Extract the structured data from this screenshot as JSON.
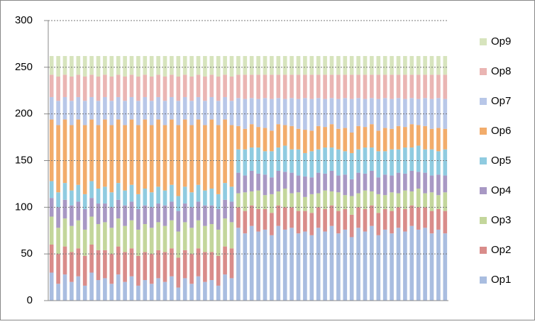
{
  "chart_data": {
    "type": "stacked-bar",
    "categories": [
      null,
      null,
      null,
      null,
      null,
      null,
      null,
      null,
      null,
      null,
      null,
      null,
      null,
      null,
      null,
      null,
      null,
      null,
      null,
      null,
      null,
      null,
      null,
      null,
      null,
      null,
      null,
      null,
      null,
      null,
      null,
      null,
      null,
      null,
      null,
      null,
      null,
      null,
      null,
      null,
      null,
      null,
      null,
      null,
      null,
      null,
      null,
      null,
      null,
      null,
      null,
      null,
      null,
      null,
      null,
      null,
      null,
      null,
      null,
      null
    ],
    "series": [
      {
        "name": "Op1",
        "color": "#a9bde0",
        "values": [
          30,
          18,
          28,
          20,
          26,
          16,
          30,
          22,
          24,
          18,
          28,
          20,
          26,
          16,
          22,
          18,
          24,
          20,
          26,
          14,
          24,
          18,
          26,
          20,
          22,
          16,
          28,
          24,
          78,
          72,
          80,
          74,
          76,
          70,
          80,
          76,
          78,
          72,
          74,
          70,
          78,
          74,
          80,
          72,
          76,
          68,
          78,
          74,
          80,
          70,
          76,
          72,
          78,
          74,
          80,
          76,
          78,
          72,
          76,
          72
        ]
      },
      {
        "name": "Op2",
        "color": "#d98c8a",
        "values": [
          30,
          32,
          30,
          32,
          30,
          32,
          30,
          32,
          30,
          32,
          30,
          32,
          30,
          32,
          30,
          32,
          30,
          32,
          30,
          32,
          30,
          32,
          30,
          32,
          30,
          32,
          30,
          32,
          22,
          24,
          22,
          24,
          22,
          24,
          22,
          24,
          22,
          24,
          22,
          24,
          22,
          24,
          22,
          24,
          22,
          24,
          22,
          24,
          22,
          24,
          22,
          24,
          22,
          24,
          22,
          24,
          22,
          24,
          22,
          24
        ]
      },
      {
        "name": "Op3",
        "color": "#c3d69b",
        "values": [
          30,
          28,
          30,
          28,
          30,
          28,
          30,
          28,
          30,
          28,
          30,
          28,
          30,
          28,
          30,
          28,
          30,
          28,
          30,
          28,
          30,
          28,
          30,
          28,
          30,
          28,
          30,
          28,
          15,
          20,
          15,
          20,
          15,
          20,
          15,
          20,
          15,
          20,
          15,
          20,
          15,
          20,
          15,
          20,
          15,
          20,
          15,
          20,
          15,
          20,
          15,
          20,
          15,
          20,
          15,
          20,
          15,
          20,
          15,
          20
        ]
      },
      {
        "name": "Op4",
        "color": "#a898c4",
        "values": [
          20,
          22,
          20,
          22,
          20,
          22,
          20,
          22,
          20,
          22,
          20,
          22,
          20,
          22,
          20,
          22,
          20,
          22,
          20,
          22,
          20,
          22,
          20,
          22,
          20,
          22,
          20,
          22,
          22,
          18,
          22,
          18,
          22,
          18,
          22,
          18,
          22,
          18,
          22,
          18,
          22,
          18,
          22,
          18,
          22,
          18,
          22,
          18,
          22,
          18,
          22,
          18,
          22,
          18,
          22,
          18,
          22,
          18,
          22,
          18
        ]
      },
      {
        "name": "Op5",
        "color": "#8fcbe0",
        "values": [
          18,
          16,
          18,
          16,
          18,
          16,
          18,
          16,
          18,
          16,
          18,
          16,
          18,
          16,
          18,
          16,
          18,
          16,
          18,
          16,
          18,
          16,
          18,
          16,
          18,
          16,
          18,
          16,
          25,
          28,
          25,
          28,
          25,
          28,
          25,
          28,
          25,
          28,
          25,
          28,
          25,
          28,
          25,
          28,
          25,
          28,
          25,
          28,
          25,
          28,
          25,
          28,
          25,
          28,
          25,
          28,
          25,
          28,
          25,
          28
        ]
      },
      {
        "name": "Op6",
        "color": "#f2ac6b",
        "values": [
          66,
          72,
          68,
          70,
          70,
          74,
          66,
          68,
          72,
          72,
          68,
          70,
          70,
          74,
          74,
          72,
          72,
          70,
          70,
          76,
          72,
          72,
          70,
          70,
          74,
          74,
          68,
          66,
          25,
          22,
          25,
          22,
          25,
          22,
          25,
          22,
          25,
          22,
          25,
          22,
          25,
          22,
          25,
          22,
          25,
          22,
          25,
          22,
          25,
          22,
          25,
          22,
          25,
          22,
          25,
          22,
          25,
          22,
          25,
          22
        ]
      },
      {
        "name": "Op7",
        "color": "#b8c7e8",
        "values": [
          24,
          26,
          24,
          26,
          24,
          26,
          24,
          26,
          24,
          26,
          24,
          26,
          24,
          26,
          24,
          26,
          24,
          26,
          24,
          26,
          24,
          26,
          24,
          26,
          24,
          26,
          24,
          26,
          30,
          32,
          28,
          30,
          32,
          34,
          28,
          28,
          30,
          32,
          34,
          34,
          30,
          30,
          28,
          32,
          32,
          36,
          30,
          30,
          28,
          34,
          32,
          32,
          30,
          30,
          28,
          28,
          30,
          32,
          32,
          32
        ]
      },
      {
        "name": "Op8",
        "color": "#eab5b3",
        "values": [
          24,
          26,
          24,
          26,
          24,
          26,
          24,
          26,
          24,
          26,
          24,
          26,
          24,
          26,
          24,
          26,
          24,
          26,
          24,
          26,
          24,
          26,
          24,
          26,
          24,
          26,
          24,
          26,
          25,
          26,
          25,
          26,
          25,
          26,
          25,
          26,
          25,
          26,
          25,
          26,
          25,
          26,
          25,
          26,
          25,
          26,
          25,
          26,
          25,
          26,
          25,
          26,
          25,
          26,
          25,
          26,
          25,
          26,
          25,
          26
        ]
      },
      {
        "name": "Op9",
        "color": "#d7e4bd",
        "values": [
          20,
          22,
          20,
          22,
          20,
          22,
          20,
          22,
          20,
          22,
          20,
          22,
          20,
          22,
          20,
          22,
          20,
          22,
          20,
          22,
          20,
          22,
          20,
          22,
          20,
          22,
          20,
          22,
          20,
          20,
          20,
          20,
          20,
          20,
          20,
          20,
          20,
          20,
          20,
          20,
          20,
          20,
          20,
          20,
          20,
          20,
          20,
          20,
          20,
          20,
          20,
          20,
          20,
          20,
          20,
          20,
          20,
          20,
          20,
          20
        ]
      }
    ],
    "ylim": [
      0,
      300
    ],
    "yticks": [
      0,
      50,
      100,
      150,
      200,
      250,
      300
    ],
    "grid": true,
    "legend": "right"
  }
}
